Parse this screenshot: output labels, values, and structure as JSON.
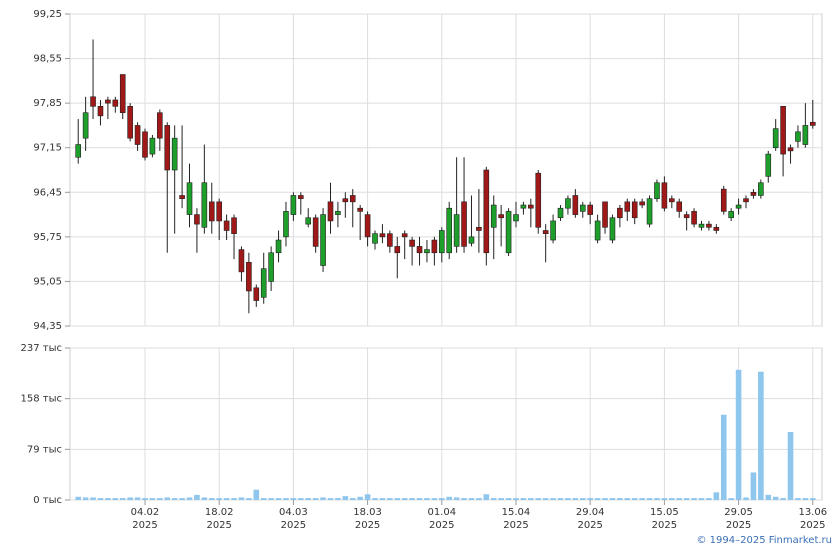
{
  "chart_data": [
    {
      "type": "candlestick",
      "up_color": "#1e9e2a",
      "down_color": "#a01818",
      "grid": true,
      "ylim": [
        94.35,
        99.25
      ],
      "yticks": [
        {
          "value": 94.35,
          "label": "94,35"
        },
        {
          "value": 95.05,
          "label": "95,05"
        },
        {
          "value": 95.75,
          "label": "95,75"
        },
        {
          "value": 96.45,
          "label": "96,45"
        },
        {
          "value": 97.15,
          "label": "97,15"
        },
        {
          "value": 97.85,
          "label": "97,85"
        },
        {
          "value": 98.55,
          "label": "98,55"
        },
        {
          "value": 99.25,
          "label": "99,25"
        }
      ],
      "open": [
        97.0,
        97.3,
        97.95,
        97.8,
        97.9,
        97.9,
        98.3,
        97.8,
        97.5,
        97.4,
        97.05,
        97.7,
        97.5,
        96.8,
        96.4,
        96.1,
        96.1,
        95.9,
        96.3,
        96.3,
        96.0,
        96.05,
        95.55,
        95.35,
        94.95,
        94.8,
        95.05,
        95.5,
        95.75,
        96.1,
        96.4,
        95.95,
        96.05,
        95.3,
        96.3,
        96.1,
        96.35,
        96.4,
        96.2,
        96.1,
        95.65,
        95.8,
        95.8,
        95.6,
        95.8,
        95.7,
        95.6,
        95.5,
        95.7,
        95.5,
        95.5,
        95.6,
        96.3,
        95.65,
        95.9,
        96.8,
        95.9,
        96.1,
        95.5,
        96.0,
        96.2,
        96.25,
        96.75,
        95.85,
        95.7,
        96.05,
        96.2,
        96.4,
        96.15,
        96.25,
        95.7,
        96.3,
        95.7,
        96.2,
        96.3,
        96.3,
        96.3,
        95.95,
        96.35,
        96.6,
        96.35,
        96.3,
        96.1,
        96.15,
        95.9,
        95.95,
        95.9,
        96.5,
        96.05,
        96.2,
        96.35,
        96.45,
        96.4,
        96.7,
        97.15,
        97.8,
        97.15,
        97.25,
        97.2,
        97.55
      ],
      "high": [
        97.6,
        97.95,
        98.85,
        97.9,
        97.95,
        97.95,
        98.3,
        97.85,
        97.55,
        97.45,
        97.35,
        97.75,
        97.55,
        97.5,
        97.5,
        96.9,
        96.2,
        97.2,
        96.6,
        96.35,
        96.1,
        96.1,
        95.6,
        95.5,
        95.0,
        95.5,
        95.6,
        95.85,
        96.3,
        96.45,
        96.45,
        96.2,
        96.1,
        96.2,
        96.6,
        96.3,
        96.45,
        96.5,
        96.25,
        96.15,
        95.85,
        95.95,
        95.85,
        95.75,
        95.85,
        95.75,
        95.75,
        95.7,
        95.75,
        95.9,
        96.3,
        97.0,
        97.0,
        96.4,
        96.5,
        96.85,
        96.4,
        96.25,
        96.2,
        96.3,
        96.3,
        96.35,
        96.8,
        95.95,
        96.1,
        96.25,
        96.4,
        96.5,
        96.3,
        96.3,
        96.1,
        96.3,
        96.1,
        96.25,
        96.35,
        96.35,
        96.35,
        96.4,
        96.65,
        96.7,
        96.4,
        96.35,
        96.15,
        96.2,
        96.0,
        96.0,
        95.95,
        96.55,
        96.2,
        96.35,
        96.4,
        96.5,
        96.65,
        97.1,
        97.6,
        97.8,
        97.2,
        97.5,
        97.85,
        97.9
      ],
      "low": [
        96.9,
        97.1,
        97.6,
        97.5,
        97.6,
        97.7,
        97.6,
        97.25,
        97.1,
        96.95,
        97.0,
        97.1,
        95.5,
        95.8,
        96.2,
        95.9,
        95.5,
        95.8,
        95.8,
        95.7,
        95.7,
        95.4,
        95.05,
        94.55,
        94.65,
        94.7,
        94.9,
        95.35,
        95.6,
        96.0,
        96.1,
        95.9,
        95.5,
        95.2,
        95.8,
        95.9,
        96.05,
        95.9,
        95.7,
        95.6,
        95.55,
        95.65,
        95.5,
        95.1,
        95.4,
        95.3,
        95.3,
        95.35,
        95.3,
        95.35,
        95.4,
        95.5,
        95.5,
        95.6,
        95.5,
        95.3,
        95.4,
        95.6,
        95.45,
        95.9,
        96.1,
        95.9,
        95.8,
        95.35,
        95.65,
        96.0,
        96.1,
        96.05,
        96.05,
        95.95,
        95.65,
        95.8,
        95.65,
        95.9,
        96.0,
        95.95,
        96.2,
        95.9,
        96.3,
        96.15,
        96.2,
        96.05,
        95.85,
        95.9,
        95.85,
        95.85,
        95.8,
        96.1,
        96.0,
        96.1,
        96.2,
        96.35,
        96.35,
        96.6,
        97.1,
        96.7,
        96.9,
        97.15,
        97.15,
        97.45
      ],
      "close": [
        97.2,
        97.7,
        97.8,
        97.65,
        97.85,
        97.8,
        97.7,
        97.3,
        97.2,
        97.0,
        97.3,
        97.3,
        96.8,
        97.3,
        96.35,
        96.6,
        95.95,
        96.6,
        96.0,
        96.0,
        95.85,
        95.8,
        95.2,
        94.9,
        94.75,
        95.25,
        95.5,
        95.7,
        96.15,
        96.4,
        96.35,
        96.05,
        95.6,
        96.1,
        96.0,
        96.15,
        96.3,
        96.3,
        96.15,
        95.75,
        95.8,
        95.75,
        95.6,
        95.5,
        95.75,
        95.6,
        95.5,
        95.55,
        95.5,
        95.85,
        96.2,
        96.1,
        95.6,
        95.75,
        95.85,
        95.5,
        96.25,
        96.05,
        96.15,
        96.1,
        96.25,
        96.2,
        95.9,
        95.8,
        96.0,
        96.2,
        96.35,
        96.1,
        96.25,
        96.1,
        96.0,
        95.9,
        96.05,
        96.05,
        96.15,
        96.05,
        96.25,
        96.35,
        96.6,
        96.2,
        96.3,
        96.15,
        96.05,
        95.95,
        95.95,
        95.9,
        95.85,
        96.15,
        96.15,
        96.25,
        96.3,
        96.4,
        96.6,
        97.05,
        97.45,
        97.05,
        97.1,
        97.4,
        97.5,
        97.5
      ]
    },
    {
      "type": "bar",
      "color": "#8fc6ee",
      "grid": true,
      "ylim": [
        0,
        237
      ],
      "yticks": [
        {
          "value": 0,
          "label": "0 тыс"
        },
        {
          "value": 79,
          "label": "79 тыс"
        },
        {
          "value": 158,
          "label": "158 тыс"
        },
        {
          "value": 237,
          "label": "237 тыс"
        }
      ],
      "categories": [
        null,
        null,
        null,
        null,
        null,
        null,
        null,
        null,
        null,
        "04.02\n2025",
        null,
        null,
        null,
        null,
        null,
        null,
        null,
        null,
        null,
        "18.02\n2025",
        null,
        null,
        null,
        null,
        null,
        null,
        null,
        null,
        null,
        "04.03\n2025",
        null,
        null,
        null,
        null,
        null,
        null,
        null,
        null,
        null,
        "18.03\n2025",
        null,
        null,
        null,
        null,
        null,
        null,
        null,
        null,
        null,
        "01.04\n2025",
        null,
        null,
        null,
        null,
        null,
        null,
        null,
        null,
        null,
        "15.04\n2025",
        null,
        null,
        null,
        null,
        null,
        null,
        null,
        null,
        null,
        "29.04\n2025",
        null,
        null,
        null,
        null,
        null,
        null,
        null,
        null,
        null,
        "15.05\n2025",
        null,
        null,
        null,
        null,
        null,
        null,
        null,
        null,
        null,
        "29.05\n2025",
        null,
        null,
        null,
        null,
        null,
        null,
        null,
        null,
        null,
        "13.06\n2025"
      ],
      "values": [
        5,
        4,
        4,
        3,
        3,
        3,
        3,
        4,
        4,
        3,
        3,
        3,
        4,
        3,
        3,
        4,
        8,
        4,
        3,
        3,
        3,
        3,
        4,
        3,
        16,
        3,
        3,
        3,
        3,
        3,
        3,
        3,
        3,
        4,
        3,
        3,
        6,
        3,
        5,
        9,
        3,
        3,
        3,
        3,
        3,
        3,
        3,
        3,
        3,
        3,
        5,
        4,
        3,
        3,
        3,
        9,
        3,
        3,
        3,
        3,
        3,
        3,
        3,
        3,
        3,
        3,
        3,
        3,
        3,
        3,
        3,
        3,
        3,
        3,
        3,
        3,
        3,
        3,
        3,
        3,
        3,
        3,
        3,
        3,
        3,
        3,
        12,
        133,
        3,
        203,
        4,
        43,
        200,
        8,
        5,
        3,
        106,
        3,
        3,
        3
      ]
    }
  ],
  "footer": "© 1994–2025 Finmarket.ru"
}
